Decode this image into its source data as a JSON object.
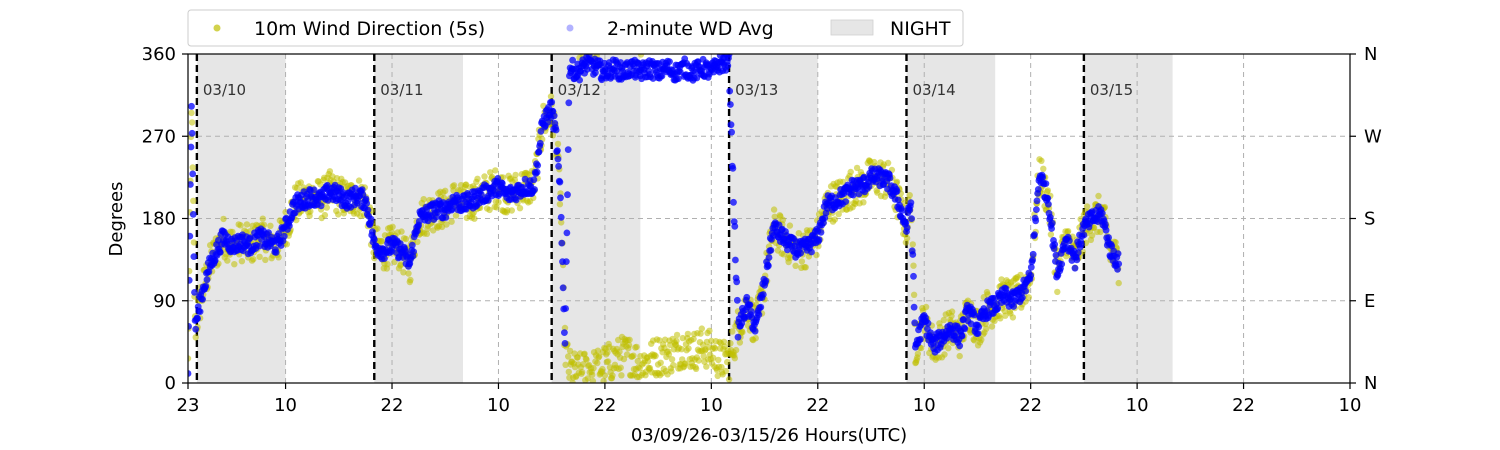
{
  "chart_data": {
    "type": "scatter",
    "xlabel": "03/09/26-03/15/26  Hours(UTC)",
    "ylabel": "Degrees",
    "ylim": [
      0,
      360
    ],
    "xlim_hours": [
      0,
      131
    ],
    "y_ticks": [
      0,
      90,
      180,
      270,
      360
    ],
    "y_right_labels": [
      "N",
      "E",
      "S",
      "W",
      "N"
    ],
    "x_tick_hours": [
      0,
      11,
      23,
      35,
      47,
      59,
      71,
      83,
      95,
      107,
      119,
      131
    ],
    "x_tick_labels": [
      "23",
      "10",
      "22",
      "10",
      "22",
      "10",
      "22",
      "10",
      "22",
      "10",
      "22",
      "10"
    ],
    "grid": true,
    "legend": {
      "placement": "top",
      "entries": [
        {
          "label": "10m Wind Direction (5s)",
          "color": "#bfbf00",
          "marker": "dot"
        },
        {
          "label": "2-minute WD Avg",
          "color": "#0000ff",
          "marker": "dot"
        },
        {
          "label": "NIGHT",
          "color": "#e6e6e6",
          "marker": "patch"
        }
      ]
    },
    "day_markers": [
      {
        "hour": 1,
        "label": "03/10"
      },
      {
        "hour": 21,
        "label": "03/11"
      },
      {
        "hour": 41,
        "label": "03/12"
      },
      {
        "hour": 61,
        "label": "03/13"
      },
      {
        "hour": 81,
        "label": "03/14"
      },
      {
        "hour": 101,
        "label": "03/15"
      }
    ],
    "night_periods": [
      [
        1,
        11
      ],
      [
        21,
        31
      ],
      [
        41,
        51
      ],
      [
        61,
        71
      ],
      [
        81,
        91
      ],
      [
        101,
        111
      ]
    ],
    "series": [
      {
        "name": "10m Wind Direction (5s)",
        "color": "#bfbf00",
        "spread": 22,
        "points": [
          [
            0,
            20
          ],
          [
            0.4,
            310
          ],
          [
            0.8,
            60
          ],
          [
            1.5,
            95
          ],
          [
            2.5,
            130
          ],
          [
            3.5,
            150
          ],
          [
            4,
            160
          ],
          [
            5,
            150
          ],
          [
            6,
            155
          ],
          [
            7,
            150
          ],
          [
            8,
            160
          ],
          [
            9,
            155
          ],
          [
            10,
            150
          ],
          [
            11,
            170
          ],
          [
            12,
            195
          ],
          [
            13,
            200
          ],
          [
            14,
            205
          ],
          [
            15,
            200
          ],
          [
            16,
            210
          ],
          [
            17,
            205
          ],
          [
            18,
            200
          ],
          [
            19,
            205
          ],
          [
            20,
            200
          ],
          [
            20.5,
            180
          ],
          [
            21,
            150
          ],
          [
            22,
            145
          ],
          [
            23,
            150
          ],
          [
            24,
            145
          ],
          [
            25,
            130
          ],
          [
            26,
            180
          ],
          [
            27,
            185
          ],
          [
            28,
            190
          ],
          [
            29,
            190
          ],
          [
            30,
            200
          ],
          [
            31,
            195
          ],
          [
            32,
            200
          ],
          [
            33,
            205
          ],
          [
            34,
            210
          ],
          [
            35,
            215
          ],
          [
            36,
            205
          ],
          [
            37,
            210
          ],
          [
            38,
            215
          ],
          [
            39,
            215
          ],
          [
            40,
            285
          ],
          [
            41,
            295
          ],
          [
            41.5,
            270
          ],
          [
            42,
            200
          ],
          [
            42.5,
            40
          ],
          [
            43,
            15
          ],
          [
            44,
            10
          ],
          [
            45,
            15
          ],
          [
            46,
            15
          ],
          [
            47,
            20
          ],
          [
            48,
            25
          ],
          [
            49,
            30
          ],
          [
            50,
            30
          ],
          [
            51,
            20
          ],
          [
            52,
            25
          ],
          [
            53,
            30
          ],
          [
            54,
            30
          ],
          [
            55,
            35
          ],
          [
            56,
            40
          ],
          [
            57,
            35
          ],
          [
            58,
            40
          ],
          [
            59,
            35
          ],
          [
            60,
            25
          ],
          [
            61,
            25
          ],
          [
            62,
            60
          ],
          [
            63,
            85
          ],
          [
            64,
            60
          ],
          [
            65,
            110
          ],
          [
            66,
            170
          ],
          [
            67,
            160
          ],
          [
            68,
            150
          ],
          [
            69,
            145
          ],
          [
            70,
            150
          ],
          [
            71,
            160
          ],
          [
            72,
            195
          ],
          [
            73,
            200
          ],
          [
            74,
            205
          ],
          [
            75,
            215
          ],
          [
            76,
            215
          ],
          [
            77,
            225
          ],
          [
            78,
            225
          ],
          [
            79,
            220
          ],
          [
            80,
            200
          ],
          [
            81,
            170
          ],
          [
            81.5,
            200
          ],
          [
            82,
            40
          ],
          [
            83,
            70
          ],
          [
            84,
            40
          ],
          [
            85,
            50
          ],
          [
            86,
            60
          ],
          [
            87,
            50
          ],
          [
            88,
            80
          ],
          [
            89,
            60
          ],
          [
            90,
            80
          ],
          [
            91,
            85
          ],
          [
            92,
            95
          ],
          [
            93,
            90
          ],
          [
            94,
            100
          ],
          [
            95,
            115
          ],
          [
            96,
            230
          ],
          [
            97,
            200
          ],
          [
            98,
            120
          ],
          [
            99,
            160
          ],
          [
            100,
            135
          ],
          [
            101,
            170
          ],
          [
            102,
            180
          ],
          [
            103,
            185
          ],
          [
            104,
            145
          ],
          [
            105,
            130
          ]
        ]
      },
      {
        "name": "2-minute WD Avg",
        "color": "#0000ff",
        "spread": 10,
        "points": [
          [
            0,
            20
          ],
          [
            0.4,
            310
          ],
          [
            0.8,
            60
          ],
          [
            1.5,
            95
          ],
          [
            2.5,
            130
          ],
          [
            3.5,
            150
          ],
          [
            4,
            160
          ],
          [
            5,
            150
          ],
          [
            6,
            155
          ],
          [
            7,
            150
          ],
          [
            8,
            160
          ],
          [
            9,
            155
          ],
          [
            10,
            150
          ],
          [
            11,
            170
          ],
          [
            12,
            195
          ],
          [
            13,
            200
          ],
          [
            14,
            205
          ],
          [
            15,
            200
          ],
          [
            16,
            210
          ],
          [
            17,
            205
          ],
          [
            18,
            200
          ],
          [
            19,
            205
          ],
          [
            20,
            200
          ],
          [
            20.5,
            180
          ],
          [
            21,
            150
          ],
          [
            22,
            145
          ],
          [
            23,
            150
          ],
          [
            24,
            145
          ],
          [
            25,
            130
          ],
          [
            26,
            180
          ],
          [
            27,
            185
          ],
          [
            28,
            190
          ],
          [
            29,
            190
          ],
          [
            30,
            200
          ],
          [
            31,
            195
          ],
          [
            32,
            200
          ],
          [
            33,
            205
          ],
          [
            34,
            210
          ],
          [
            35,
            215
          ],
          [
            36,
            205
          ],
          [
            37,
            210
          ],
          [
            38,
            215
          ],
          [
            39,
            215
          ],
          [
            40,
            285
          ],
          [
            41,
            300
          ],
          [
            41.5,
            270
          ],
          [
            42,
            200
          ],
          [
            42.5,
            40
          ],
          [
            43,
            345
          ],
          [
            44,
            340
          ],
          [
            45,
            350
          ],
          [
            46,
            345
          ],
          [
            47,
            340
          ],
          [
            48,
            345
          ],
          [
            49,
            340
          ],
          [
            50,
            345
          ],
          [
            51,
            340
          ],
          [
            52,
            345
          ],
          [
            53,
            340
          ],
          [
            54,
            345
          ],
          [
            55,
            340
          ],
          [
            56,
            345
          ],
          [
            57,
            340
          ],
          [
            58,
            345
          ],
          [
            59,
            340
          ],
          [
            60,
            350
          ],
          [
            61,
            350
          ],
          [
            62,
            60
          ],
          [
            63,
            85
          ],
          [
            64,
            60
          ],
          [
            65,
            110
          ],
          [
            66,
            170
          ],
          [
            67,
            160
          ],
          [
            68,
            150
          ],
          [
            69,
            145
          ],
          [
            70,
            150
          ],
          [
            71,
            160
          ],
          [
            72,
            195
          ],
          [
            73,
            200
          ],
          [
            74,
            205
          ],
          [
            75,
            215
          ],
          [
            76,
            215
          ],
          [
            77,
            225
          ],
          [
            78,
            225
          ],
          [
            79,
            220
          ],
          [
            80,
            200
          ],
          [
            81,
            170
          ],
          [
            81.5,
            200
          ],
          [
            82,
            40
          ],
          [
            83,
            70
          ],
          [
            84,
            40
          ],
          [
            85,
            50
          ],
          [
            86,
            60
          ],
          [
            87,
            50
          ],
          [
            88,
            80
          ],
          [
            89,
            60
          ],
          [
            90,
            80
          ],
          [
            91,
            85
          ],
          [
            92,
            95
          ],
          [
            93,
            90
          ],
          [
            94,
            100
          ],
          [
            95,
            115
          ],
          [
            96,
            230
          ],
          [
            97,
            200
          ],
          [
            98,
            120
          ],
          [
            99,
            160
          ],
          [
            100,
            135
          ],
          [
            101,
            170
          ],
          [
            102,
            180
          ],
          [
            103,
            185
          ],
          [
            104,
            145
          ],
          [
            105,
            130
          ]
        ]
      }
    ]
  }
}
